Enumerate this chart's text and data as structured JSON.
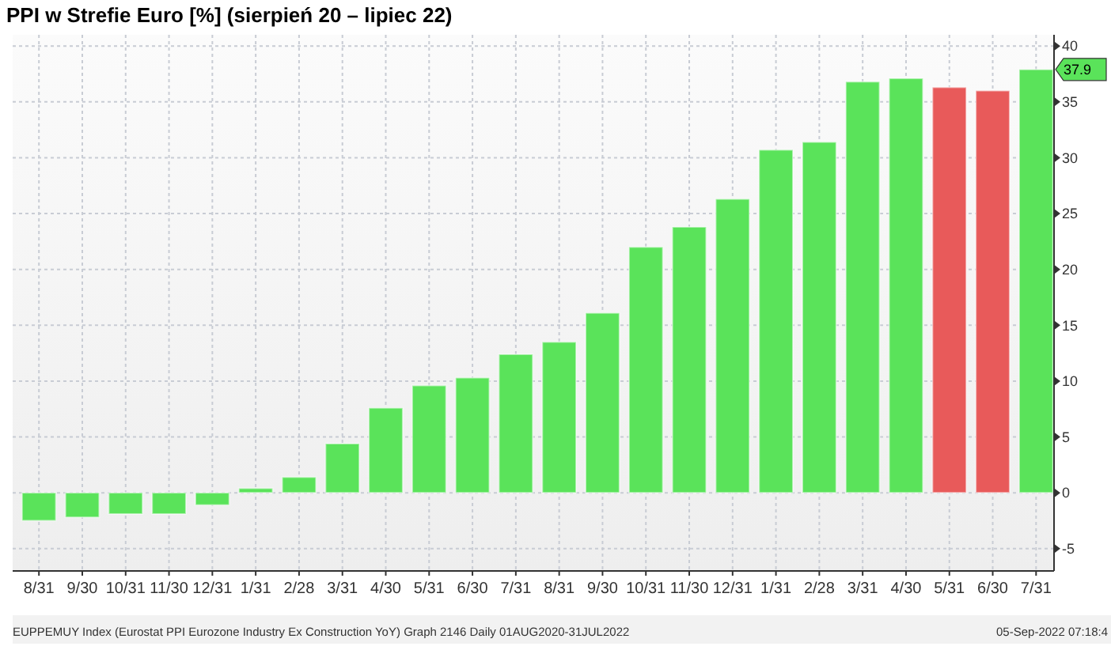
{
  "chart_data": {
    "type": "bar",
    "title": "PPI w Strefie Euro [%] (sierpień 20 – lipiec 22)",
    "categories": [
      "8/31",
      "9/30",
      "10/31",
      "11/30",
      "12/31",
      "1/31",
      "2/28",
      "3/31",
      "4/30",
      "5/31",
      "6/30",
      "7/31",
      "8/31",
      "9/30",
      "10/31",
      "11/30",
      "12/31",
      "1/31",
      "2/28",
      "3/31",
      "4/30",
      "5/31",
      "6/30",
      "7/31"
    ],
    "values": [
      -2.5,
      -2.2,
      -1.9,
      -1.9,
      -1.1,
      0.4,
      1.4,
      4.4,
      7.6,
      9.6,
      10.3,
      12.4,
      13.5,
      16.1,
      22.0,
      23.8,
      26.3,
      30.7,
      31.4,
      36.8,
      37.1,
      36.3,
      36.0,
      37.9
    ],
    "colors": [
      "#5ae35a",
      "#5ae35a",
      "#5ae35a",
      "#5ae35a",
      "#5ae35a",
      "#5ae35a",
      "#5ae35a",
      "#5ae35a",
      "#5ae35a",
      "#5ae35a",
      "#5ae35a",
      "#5ae35a",
      "#5ae35a",
      "#5ae35a",
      "#5ae35a",
      "#5ae35a",
      "#5ae35a",
      "#5ae35a",
      "#5ae35a",
      "#5ae35a",
      "#5ae35a",
      "#e85a5a",
      "#e85a5a",
      "#5ae35a"
    ],
    "ylim": [
      -7,
      41
    ],
    "yticks": [
      -5,
      0,
      5,
      10,
      15,
      20,
      25,
      30,
      35,
      40
    ],
    "grid": true,
    "annotations": [
      "37.9",
      "EUPPEMUY Index (Eurostat PPI Eurozone Industry Ex Construction YoY) Graph 2146  Daily 01AUG2020-31JUL2022",
      "05-Sep-2022 07:18:4"
    ]
  }
}
